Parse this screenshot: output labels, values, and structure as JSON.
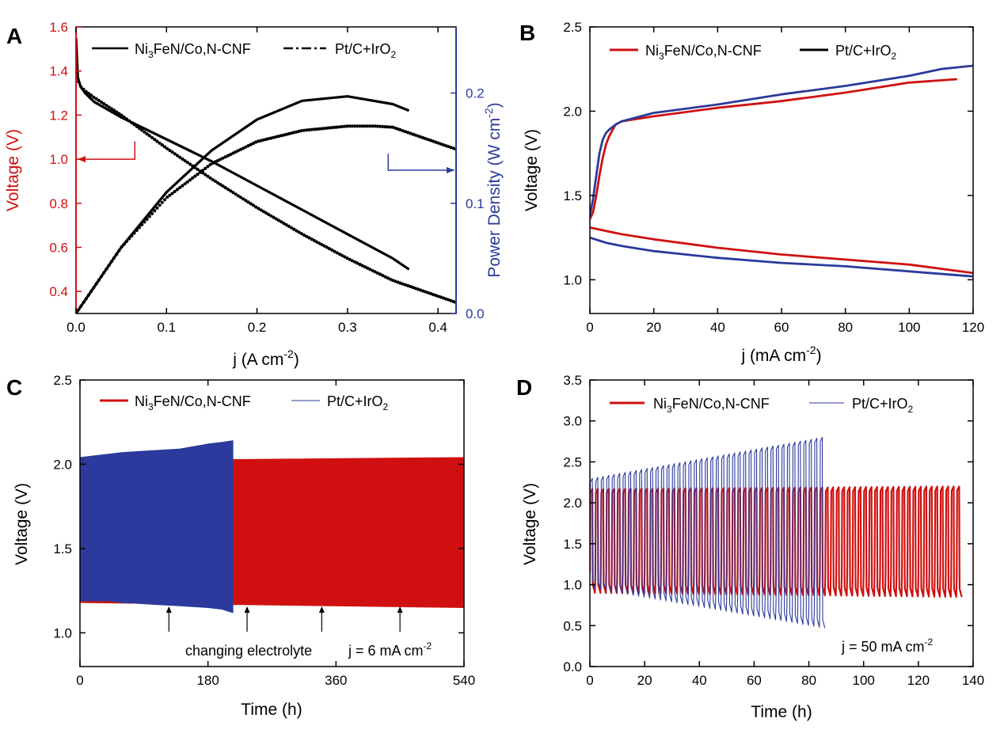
{
  "colors": {
    "red": "#d01010",
    "blue": "#2b3a9c",
    "black": "#000000"
  },
  "chart_data": [
    {
      "panel": "A",
      "type": "line",
      "xlabel_main": "j (A cm",
      "xlabel_sup": "-2",
      "xlabel_end": ")",
      "ylabel": "Voltage (V)",
      "y2label_main": "Power Density (W cm",
      "y2label_sup": "-2",
      "y2label_end": ")",
      "xlim": [
        0,
        0.42
      ],
      "ylim": [
        0.3,
        1.6
      ],
      "y2lim": [
        0,
        0.26
      ],
      "xticks": [
        "0.0",
        "0.1",
        "0.2",
        "0.3",
        "0.4"
      ],
      "xtick_values": [
        0,
        0.1,
        0.2,
        0.3,
        0.4
      ],
      "yticks": [
        "0.4",
        "0.6",
        "0.8",
        "1.0",
        "1.2",
        "1.4",
        "1.6"
      ],
      "ytick_values": [
        0.4,
        0.6,
        0.8,
        1.0,
        1.2,
        1.4,
        1.6
      ],
      "y2ticks": [
        "0.0",
        "0.1",
        "0.2"
      ],
      "y2tick_values": [
        0,
        0.1,
        0.2
      ],
      "legend": [
        {
          "pre": "Ni",
          "sub": "3",
          "post": "FeN/Co,N-CNF",
          "style": "solid"
        },
        {
          "pre": "Pt/C+IrO",
          "sub": "2",
          "post": "",
          "style": "dashdot"
        }
      ],
      "series": [
        {
          "name": "Ni3FeN/Co,N-CNF voltage",
          "axis": "left",
          "style": "solid",
          "x": [
            0,
            0.002,
            0.005,
            0.01,
            0.02,
            0.05,
            0.1,
            0.15,
            0.2,
            0.25,
            0.3,
            0.35,
            0.368
          ],
          "y": [
            1.55,
            1.37,
            1.33,
            1.3,
            1.26,
            1.19,
            1.09,
            0.99,
            0.88,
            0.77,
            0.66,
            0.55,
            0.5
          ]
        },
        {
          "name": "Pt/C+IrO2 voltage",
          "axis": "left",
          "style": "dotted",
          "x": [
            0,
            0.002,
            0.005,
            0.01,
            0.02,
            0.05,
            0.1,
            0.15,
            0.2,
            0.25,
            0.3,
            0.35,
            0.42
          ],
          "y": [
            1.5,
            1.36,
            1.33,
            1.31,
            1.28,
            1.2,
            1.05,
            0.91,
            0.78,
            0.66,
            0.55,
            0.45,
            0.35
          ]
        },
        {
          "name": "Ni3FeN/Co,N-CNF power density",
          "axis": "right",
          "style": "solid",
          "x": [
            0,
            0.05,
            0.1,
            0.15,
            0.2,
            0.25,
            0.3,
            0.35,
            0.368
          ],
          "y": [
            0.0,
            0.06,
            0.11,
            0.148,
            0.176,
            0.193,
            0.197,
            0.19,
            0.184
          ]
        },
        {
          "name": "Pt/C+IrO2 power density",
          "axis": "right",
          "style": "dotted",
          "x": [
            0,
            0.05,
            0.1,
            0.15,
            0.2,
            0.25,
            0.3,
            0.33,
            0.35,
            0.42
          ],
          "y": [
            0.0,
            0.06,
            0.105,
            0.136,
            0.156,
            0.166,
            0.17,
            0.17,
            0.169,
            0.149
          ]
        }
      ],
      "annotations": [
        {
          "kind": "arrow-left",
          "color": "red",
          "x": [
            0.0,
            0.065
          ],
          "y": 1.0,
          "bar_to": 1.08
        },
        {
          "kind": "arrow-right",
          "color": "blue",
          "x": [
            0.345,
            0.42
          ],
          "y": 0.13,
          "bar_to": 0.145
        }
      ]
    },
    {
      "panel": "B",
      "type": "line",
      "xlabel_main": "j (mA cm",
      "xlabel_sup": "-2",
      "xlabel_end": ")",
      "ylabel": "Voltage (V)",
      "xlim": [
        0,
        120
      ],
      "ylim": [
        0.8,
        2.5
      ],
      "xticks": [
        "0",
        "20",
        "40",
        "60",
        "80",
        "100",
        "120"
      ],
      "xtick_values": [
        0,
        20,
        40,
        60,
        80,
        100,
        120
      ],
      "yticks": [
        "1.0",
        "1.5",
        "2.0",
        "2.5"
      ],
      "ytick_values": [
        1.0,
        1.5,
        2.0,
        2.5
      ],
      "legend": [
        {
          "pre": "Ni",
          "sub": "3",
          "post": "FeN/Co,N-CNF",
          "color": "red"
        },
        {
          "pre": "Pt/C+IrO",
          "sub": "2",
          "post": "",
          "color": "black"
        }
      ],
      "series": [
        {
          "name": "Ni3FeN/Co,N-CNF charge",
          "color": "red",
          "x": [
            0,
            1,
            2,
            3,
            4,
            5,
            6,
            8,
            10,
            20,
            40,
            60,
            80,
            100,
            115
          ],
          "y": [
            1.36,
            1.4,
            1.5,
            1.62,
            1.72,
            1.8,
            1.85,
            1.92,
            1.94,
            1.97,
            2.02,
            2.06,
            2.11,
            2.17,
            2.19
          ]
        },
        {
          "name": "Pt/C+IrO2 charge",
          "color": "blue",
          "x": [
            0,
            1,
            2,
            3,
            4,
            5,
            6,
            8,
            10,
            20,
            40,
            60,
            80,
            100,
            110,
            120
          ],
          "y": [
            1.38,
            1.48,
            1.62,
            1.75,
            1.83,
            1.87,
            1.89,
            1.92,
            1.94,
            1.99,
            2.04,
            2.1,
            2.15,
            2.21,
            2.25,
            2.27
          ]
        },
        {
          "name": "Ni3FeN/Co,N-CNF discharge",
          "color": "red",
          "x": [
            0,
            5,
            10,
            20,
            40,
            60,
            80,
            100,
            120
          ],
          "y": [
            1.31,
            1.29,
            1.27,
            1.24,
            1.19,
            1.15,
            1.12,
            1.09,
            1.04
          ]
        },
        {
          "name": "Pt/C+IrO2 discharge",
          "color": "blue",
          "x": [
            0,
            5,
            10,
            20,
            40,
            60,
            80,
            100,
            120
          ],
          "y": [
            1.25,
            1.22,
            1.2,
            1.17,
            1.13,
            1.1,
            1.08,
            1.05,
            1.02
          ]
        }
      ]
    },
    {
      "panel": "C",
      "type": "area",
      "xlabel": "Time (h)",
      "ylabel": "Voltage (V)",
      "xlim": [
        0,
        540
      ],
      "ylim": [
        0.8,
        2.5
      ],
      "xticks": [
        "0",
        "180",
        "360",
        "540"
      ],
      "xtick_values": [
        0,
        180,
        360,
        540
      ],
      "yticks": [
        "1.0",
        "1.5",
        "2.0",
        "2.5"
      ],
      "ytick_values": [
        1.0,
        1.5,
        2.0,
        2.5
      ],
      "legend": [
        {
          "pre": "Ni",
          "sub": "3",
          "post": "FeN/Co,N-CNF",
          "color": "red",
          "thick": true
        },
        {
          "pre": "Pt/C+IrO",
          "sub": "2",
          "post": "",
          "color": "blue",
          "thick": false
        }
      ],
      "series": [
        {
          "name": "Ni3FeN/Co,N-CNF",
          "color": "red",
          "x": [
            0,
            540
          ],
          "upper": [
            2.02,
            2.04
          ],
          "lower": [
            1.18,
            1.15
          ]
        },
        {
          "name": "Pt/C+IrO2",
          "color": "blue",
          "x": [
            0,
            40,
            60,
            100,
            140,
            180,
            200,
            215
          ],
          "upper": [
            2.04,
            2.06,
            2.07,
            2.08,
            2.09,
            2.12,
            2.13,
            2.14
          ],
          "lower": [
            1.19,
            1.19,
            1.18,
            1.17,
            1.16,
            1.15,
            1.14,
            1.12
          ]
        }
      ],
      "arrows_x": [
        125,
        235,
        340,
        450
      ],
      "annotation_text": "changing electrolyte",
      "note_main": "j = 6 mA cm",
      "note_sup": "-2"
    },
    {
      "panel": "D",
      "type": "line",
      "xlabel": "Time (h)",
      "ylabel": "Voltage (V)",
      "xlim": [
        0,
        140
      ],
      "ylim": [
        0.0,
        3.5
      ],
      "xticks": [
        "0",
        "20",
        "40",
        "60",
        "80",
        "100",
        "120",
        "140"
      ],
      "xtick_values": [
        0,
        20,
        40,
        60,
        80,
        100,
        120,
        140
      ],
      "yticks": [
        "0.0",
        "0.5",
        "1.0",
        "1.5",
        "2.0",
        "2.5",
        "3.0",
        "3.5"
      ],
      "ytick_values": [
        0,
        0.5,
        1.0,
        1.5,
        2.0,
        2.5,
        3.0,
        3.5
      ],
      "legend": [
        {
          "pre": "Ni",
          "sub": "3",
          "post": "FeN/Co,N-CNF",
          "color": "red",
          "thick": true
        },
        {
          "pre": "Pt/C+IrO",
          "sub": "2",
          "post": "",
          "color": "blue",
          "thick": false
        }
      ],
      "series": [
        {
          "name": "Ni3FeN/Co,N-CNF",
          "color": "red",
          "period_h": 2,
          "x_end": 137,
          "charge_start": 2.17,
          "charge_end": 2.2,
          "discharge_start": 0.9,
          "discharge_end": 0.85
        },
        {
          "name": "Pt/C+IrO2",
          "color": "blue",
          "period_h": 2,
          "x_end": 87,
          "charge_start": 2.3,
          "charge_end": 2.8,
          "discharge_start": 0.95,
          "discharge_end": 0.47
        }
      ],
      "note_main": "j = 50 mA cm",
      "note_sup": "-2"
    }
  ],
  "panel_labels": [
    "A",
    "B",
    "C",
    "D"
  ]
}
